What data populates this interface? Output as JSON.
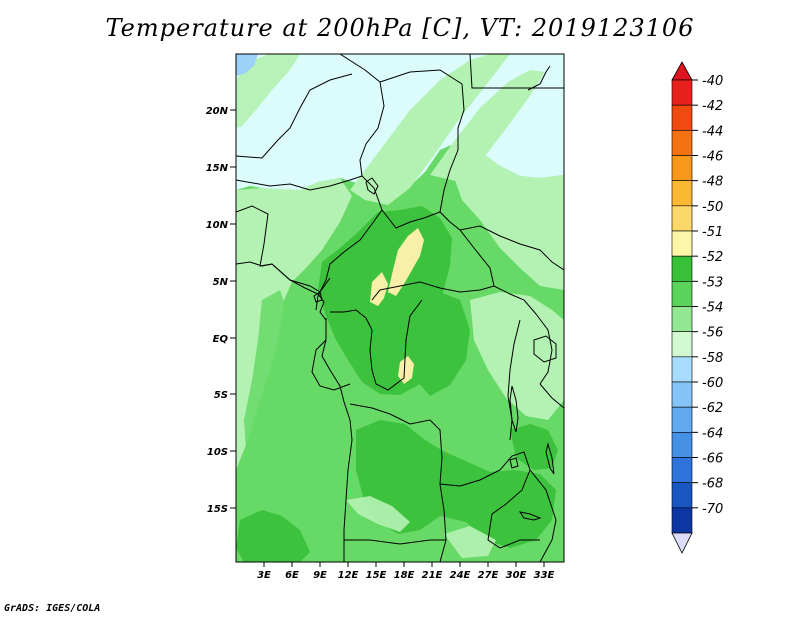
{
  "title": "Temperature at 200hPa [C], VT: 2019123106",
  "credit": "GrADS: IGES/COLA",
  "map": {
    "lat_labels": [
      "20N",
      "15N",
      "10N",
      "5N",
      "EQ",
      "5S",
      "10S",
      "15S"
    ],
    "lon_labels": [
      "3E",
      "6E",
      "9E",
      "12E",
      "15E",
      "18E",
      "21E",
      "24E",
      "27E",
      "30E",
      "33E"
    ]
  },
  "colorbar": {
    "labels": [
      "-40",
      "-42",
      "-44",
      "-46",
      "-48",
      "-50",
      "-51",
      "-52",
      "-53",
      "-54",
      "-56",
      "-58",
      "-60",
      "-62",
      "-64",
      "-66",
      "-68",
      "-70"
    ],
    "colors": [
      "#e8201e",
      "#f04a10",
      "#f47212",
      "#f8981a",
      "#fbb832",
      "#fcd86a",
      "#fdf6a8",
      "#38c038",
      "#5cd45c",
      "#94e894",
      "#d2f8d2",
      "#a8dcff",
      "#86c4f8",
      "#62aaf0",
      "#4690e6",
      "#2e74da",
      "#1a56c2",
      "#0c36a2"
    ],
    "end_colors": {
      "top": "#e0141e",
      "bottom": "#dcdcf8"
    }
  },
  "palette": {
    "pale_cyan": "#dcfcfc",
    "light_green": "#b4f2b4",
    "mid_green": "#66d966",
    "dark_green": "#3cc23c",
    "yellow": "#f8f0a8",
    "blue": "#9cd2f8",
    "border": "#000000"
  }
}
